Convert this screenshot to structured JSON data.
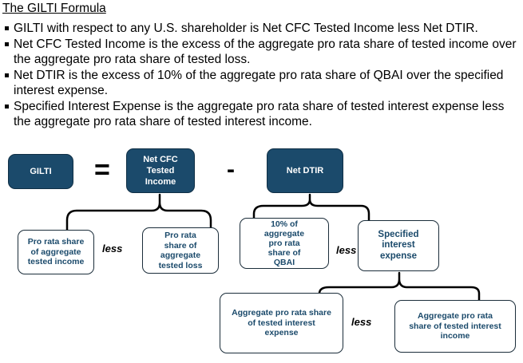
{
  "title": "The GILTI Formula",
  "bullets": [
    {
      "line1": "GILTI with respect to any U.S. shareholder is Net CFC Tested Income less Net DTIR.",
      "line2": ""
    },
    {
      "line1": "Net CFC Tested Income is the excess of the aggregate pro rata share of tested income over",
      "line2": "the aggregate pro rata share of tested loss."
    },
    {
      "line1": "Net DTIR is the excess of 10% of the aggregate pro rata share of QBAI over the specified",
      "line2": "interest expense."
    },
    {
      "line1": "Specified Interest Expense is the aggregate pro rata share of tested interest expense less",
      "line2": "the aggregate pro rata share of tested interest income."
    }
  ],
  "diagram": {
    "gilti": "GILTI",
    "equals": "=",
    "net_cfc": [
      "Net CFC",
      "Tested",
      "Income"
    ],
    "minus": "-",
    "net_dtir": "Net DTIR",
    "pro_rata_income": [
      "Pro rata share",
      "of aggregate",
      "tested income"
    ],
    "less1": "less",
    "pro_rata_loss": [
      "Pro rata",
      "share of",
      "aggregate",
      "tested loss"
    ],
    "qbai": [
      "10% of",
      "aggregate",
      "pro rata",
      "share of",
      "QBAI"
    ],
    "less2": "less",
    "specified_interest": [
      "Specified",
      "interest",
      "expense"
    ],
    "agg_interest_expense": [
      "Aggregate pro rata share",
      "of tested interest",
      "expense"
    ],
    "less3": "less",
    "agg_interest_income": [
      "Aggregate pro rata",
      "share of tested interest",
      "income"
    ]
  }
}
